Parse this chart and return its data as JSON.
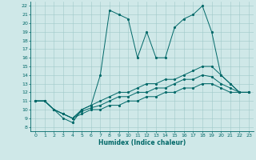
{
  "title": "",
  "xlabel": "Humidex (Indice chaleur)",
  "background_color": "#cfe8e8",
  "line_color": "#006868",
  "grid_color": "#a0c8c8",
  "xlim": [
    -0.5,
    23.5
  ],
  "ylim": [
    7.5,
    22.5
  ],
  "xticks": [
    0,
    1,
    2,
    3,
    4,
    5,
    6,
    7,
    8,
    9,
    10,
    11,
    12,
    13,
    14,
    15,
    16,
    17,
    18,
    19,
    20,
    21,
    22,
    23
  ],
  "yticks": [
    8,
    9,
    10,
    11,
    12,
    13,
    14,
    15,
    16,
    17,
    18,
    19,
    20,
    21,
    22
  ],
  "series": [
    {
      "x": [
        0,
        1,
        2,
        3,
        4,
        5,
        6,
        7,
        8,
        9,
        10,
        11,
        12,
        13,
        14,
        15,
        16,
        17,
        18,
        19,
        20,
        21,
        22,
        23
      ],
      "y": [
        11,
        11,
        10,
        9,
        8.5,
        10,
        10.5,
        14,
        21.5,
        21,
        20.5,
        16,
        19,
        16,
        16,
        19.5,
        20.5,
        21,
        22,
        19,
        14,
        13,
        12,
        12
      ],
      "marker": true
    },
    {
      "x": [
        0,
        1,
        2,
        3,
        4,
        5,
        6,
        7,
        8,
        9,
        10,
        11,
        12,
        13,
        14,
        15,
        16,
        17,
        18,
        19,
        20,
        21,
        22,
        23
      ],
      "y": [
        11,
        11,
        10,
        9.5,
        9,
        10,
        10.5,
        11,
        11.5,
        12,
        12,
        12.5,
        13,
        13,
        13.5,
        13.5,
        14,
        14.5,
        15,
        15,
        14,
        13,
        12,
        12
      ],
      "marker": true
    },
    {
      "x": [
        0,
        1,
        2,
        3,
        4,
        5,
        6,
        7,
        8,
        9,
        10,
        11,
        12,
        13,
        14,
        15,
        16,
        17,
        18,
        19,
        20,
        21,
        22,
        23
      ],
      "y": [
        11,
        11,
        10,
        9.5,
        9,
        9.8,
        10.2,
        10.5,
        11,
        11.5,
        11.5,
        12,
        12,
        12.5,
        12.5,
        13,
        13.5,
        13.5,
        14,
        13.8,
        13,
        12.5,
        12,
        12
      ],
      "marker": true
    },
    {
      "x": [
        0,
        1,
        2,
        3,
        4,
        5,
        6,
        7,
        8,
        9,
        10,
        11,
        12,
        13,
        14,
        15,
        16,
        17,
        18,
        19,
        20,
        21,
        22,
        23
      ],
      "y": [
        11,
        11,
        10,
        9.5,
        9,
        9.5,
        10,
        10,
        10.5,
        10.5,
        11,
        11,
        11.5,
        11.5,
        12,
        12,
        12.5,
        12.5,
        13,
        13,
        12.5,
        12,
        12,
        12
      ],
      "marker": true
    }
  ]
}
